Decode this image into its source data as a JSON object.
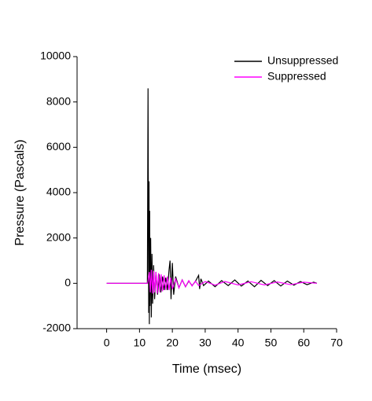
{
  "chart_data": {
    "type": "line",
    "xlabel": "Time (msec)",
    "ylabel": "Pressure (Pascals)",
    "xlim": [
      -9,
      70
    ],
    "xticks": [
      0,
      10,
      20,
      30,
      40,
      50,
      60,
      70
    ],
    "ylim": [
      -2000,
      10000
    ],
    "yticks": [
      -2000,
      0,
      2000,
      4000,
      6000,
      8000,
      10000
    ],
    "legend": "upper right",
    "series": [
      {
        "name": "Unsuppressed",
        "color": "#000000",
        "x": [
          0,
          5,
          10,
          12.4,
          12.6,
          12.8,
          12.9,
          13.0,
          13.1,
          13.2,
          13.4,
          13.6,
          13.8,
          14.0,
          14.3,
          14.6,
          15.0,
          15.5,
          16,
          16.5,
          17,
          17.5,
          18,
          18.5,
          19,
          19.3,
          19.6,
          20,
          20.4,
          21,
          22,
          23,
          24,
          25,
          26,
          27,
          28,
          28.3,
          28.7,
          29.5,
          31,
          33,
          35,
          37,
          39,
          41,
          43,
          45,
          47,
          49,
          51,
          53,
          55,
          57,
          59,
          61,
          63,
          64
        ],
        "values": [
          0,
          0,
          0,
          0,
          8600,
          -1300,
          4500,
          -1800,
          3200,
          -1000,
          2000,
          -1500,
          1300,
          -900,
          800,
          -700,
          500,
          -500,
          400,
          -400,
          300,
          -300,
          250,
          -300,
          600,
          1000,
          -700,
          900,
          -500,
          300,
          -200,
          150,
          -150,
          100,
          -100,
          80,
          350,
          -250,
          200,
          -100,
          100,
          -150,
          120,
          -100,
          150,
          -120,
          100,
          -150,
          130,
          -100,
          120,
          -120,
          100,
          -80,
          80,
          -60,
          50,
          0
        ]
      },
      {
        "name": "Suppressed",
        "color": "#ff00ff",
        "x": [
          0,
          5,
          10,
          12.5,
          13,
          13.3,
          13.6,
          14,
          14.3,
          14.6,
          15,
          15.4,
          15.8,
          16.2,
          16.6,
          17,
          17.5,
          18,
          18.5,
          19,
          19.5,
          20,
          21,
          22,
          23,
          24,
          25,
          26,
          27,
          28,
          30,
          33,
          36,
          40,
          44,
          48,
          52,
          56,
          60,
          64
        ],
        "values": [
          0,
          0,
          0,
          0,
          500,
          -400,
          600,
          -450,
          550,
          -400,
          500,
          -450,
          450,
          -400,
          400,
          -350,
          350,
          -300,
          300,
          -300,
          250,
          -250,
          200,
          -200,
          150,
          -150,
          120,
          -120,
          100,
          -100,
          80,
          -80,
          80,
          -70,
          70,
          -70,
          60,
          -60,
          50,
          0
        ]
      }
    ]
  }
}
